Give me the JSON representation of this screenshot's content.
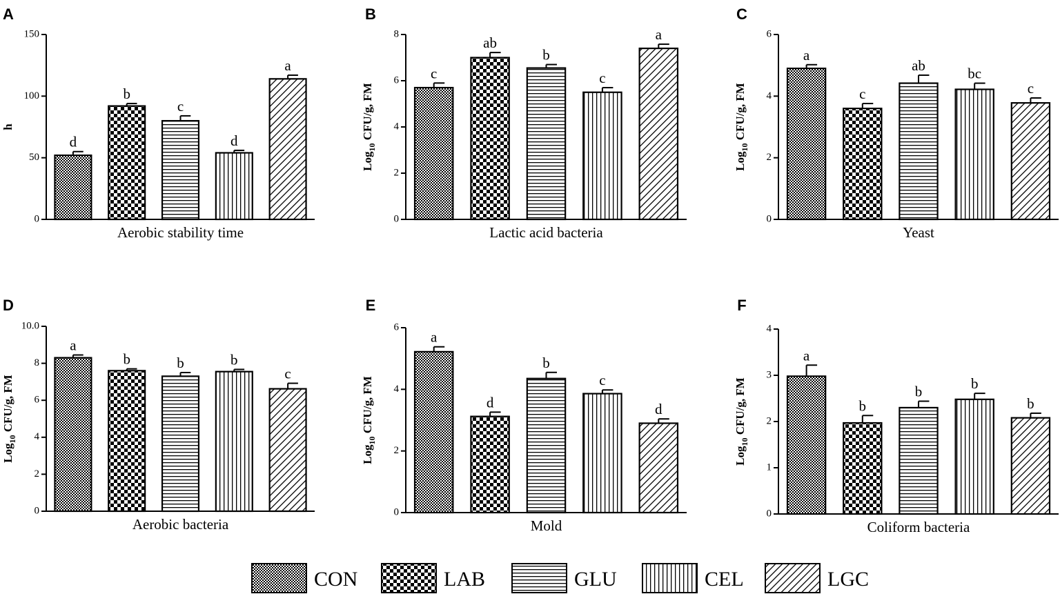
{
  "figure": {
    "legend": [
      {
        "key": "CON",
        "label": "CON",
        "pattern": "pat-con"
      },
      {
        "key": "LAB",
        "label": "LAB",
        "pattern": "pat-lab"
      },
      {
        "key": "GLU",
        "label": "GLU",
        "pattern": "pat-glu"
      },
      {
        "key": "CEL",
        "label": "CEL",
        "pattern": "pat-cel"
      },
      {
        "key": "LGC",
        "label": "LGC",
        "pattern": "pat-lgc"
      }
    ],
    "colors": {
      "ink": "#000000",
      "background": "#ffffff"
    }
  },
  "chart_data": [
    {
      "panel": "A",
      "type": "bar",
      "xlabel": "Aerobic stability time",
      "ylabel": "h",
      "ylabel_sub": "",
      "ylabel_tail": "",
      "categories": [
        "CON",
        "LAB",
        "GLU",
        "CEL",
        "LGC"
      ],
      "values": [
        52,
        92,
        80,
        54,
        114
      ],
      "errors": [
        3,
        2,
        4,
        2,
        3
      ],
      "letters": [
        "d",
        "b",
        "c",
        "d",
        "a"
      ],
      "ylim": [
        0,
        150
      ],
      "yticks": [
        0,
        50,
        100,
        150
      ],
      "yticklabels": [
        "0",
        "50",
        "100",
        "150"
      ]
    },
    {
      "panel": "B",
      "type": "bar",
      "xlabel": "Lactic acid bacteria",
      "ylabel": "Log",
      "ylabel_sub": "10",
      "ylabel_tail": " CFU/g, FM",
      "categories": [
        "CON",
        "LAB",
        "GLU",
        "CEL",
        "LGC"
      ],
      "values": [
        5.7,
        7.0,
        6.55,
        5.5,
        7.4
      ],
      "errors": [
        0.2,
        0.22,
        0.15,
        0.2,
        0.18
      ],
      "letters": [
        "c",
        "ab",
        "b",
        "c",
        "a"
      ],
      "ylim": [
        0,
        8
      ],
      "yticks": [
        0,
        2,
        4,
        6,
        8
      ],
      "yticklabels": [
        "0",
        "2",
        "4",
        "6",
        "8"
      ]
    },
    {
      "panel": "C",
      "type": "bar",
      "xlabel": "Yeast",
      "ylabel": "Log",
      "ylabel_sub": "10",
      "ylabel_tail": " CFU/g, FM",
      "categories": [
        "CON",
        "LAB",
        "GLU",
        "CEL",
        "LGC"
      ],
      "values": [
        4.9,
        3.6,
        4.42,
        4.22,
        3.78
      ],
      "errors": [
        0.12,
        0.16,
        0.26,
        0.2,
        0.16
      ],
      "letters": [
        "a",
        "c",
        "ab",
        "bc",
        "c"
      ],
      "ylim": [
        0,
        6
      ],
      "yticks": [
        0,
        2,
        4,
        6
      ],
      "yticklabels": [
        "0",
        "2",
        "4",
        "6"
      ]
    },
    {
      "panel": "D",
      "type": "bar",
      "xlabel": "Aerobic bacteria",
      "ylabel": "Log",
      "ylabel_sub": "10",
      "ylabel_tail": " CFU/g, FM",
      "categories": [
        "CON",
        "LAB",
        "GLU",
        "CEL",
        "LGC"
      ],
      "values": [
        8.3,
        7.6,
        7.3,
        7.55,
        6.62
      ],
      "errors": [
        0.15,
        0.1,
        0.2,
        0.12,
        0.3
      ],
      "letters": [
        "a",
        "b",
        "b",
        "b",
        "c"
      ],
      "ylim": [
        0,
        10
      ],
      "yticks": [
        0,
        2,
        4,
        6,
        8,
        10
      ],
      "yticklabels": [
        "0",
        "2",
        "4",
        "6",
        "8",
        "10.0"
      ]
    },
    {
      "panel": "E",
      "type": "bar",
      "xlabel": "Mold",
      "ylabel": "Log",
      "ylabel_sub": "10",
      "ylabel_tail": " CFU/g, FM",
      "categories": [
        "CON",
        "LAB",
        "GLU",
        "CEL",
        "LGC"
      ],
      "values": [
        5.22,
        3.12,
        4.35,
        3.86,
        2.9
      ],
      "errors": [
        0.16,
        0.14,
        0.2,
        0.12,
        0.14
      ],
      "letters": [
        "a",
        "d",
        "b",
        "c",
        "d"
      ],
      "ylim": [
        0,
        6
      ],
      "yticks": [
        0,
        2,
        4,
        6
      ],
      "yticklabels": [
        "0",
        "2",
        "4",
        "6"
      ]
    },
    {
      "panel": "F",
      "type": "bar",
      "xlabel": "Coliform bacteria",
      "ylabel": "Log",
      "ylabel_sub": "10",
      "ylabel_tail": " CFU/g, FM",
      "categories": [
        "CON",
        "LAB",
        "GLU",
        "CEL",
        "LGC"
      ],
      "values": [
        2.98,
        1.97,
        2.3,
        2.48,
        2.08
      ],
      "errors": [
        0.24,
        0.16,
        0.14,
        0.13,
        0.1
      ],
      "letters": [
        "a",
        "b",
        "b",
        "b",
        "b"
      ],
      "ylim": [
        0,
        4
      ],
      "yticks": [
        0,
        1,
        2,
        3,
        4
      ],
      "yticklabels": [
        "0",
        "1",
        "2",
        "3",
        "4"
      ]
    }
  ]
}
